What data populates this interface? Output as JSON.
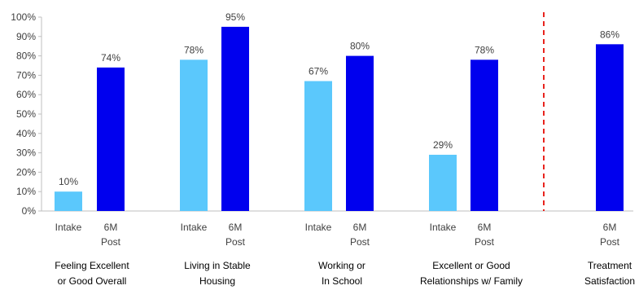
{
  "chart_data": {
    "type": "bar",
    "ylim": [
      0,
      100
    ],
    "y_ticks": [
      "0%",
      "10%",
      "20%",
      "30%",
      "40%",
      "50%",
      "60%",
      "70%",
      "80%",
      "90%",
      "100%"
    ],
    "grid": false,
    "legend": "none",
    "colors": {
      "intake": "#5bc8fc",
      "post": "#0000ee",
      "divider": "#e8241e",
      "axis": "#bfbfbf"
    },
    "groups": [
      {
        "label_lines": [
          "Feeling Excellent",
          "or Good Overall"
        ],
        "bars": [
          {
            "series": "intake",
            "label_lines": [
              "Intake"
            ],
            "value": 10,
            "value_label": "10%"
          },
          {
            "series": "post",
            "label_lines": [
              "6M",
              "Post"
            ],
            "value": 74,
            "value_label": "74%"
          }
        ]
      },
      {
        "label_lines": [
          "Living in Stable",
          "Housing"
        ],
        "bars": [
          {
            "series": "intake",
            "label_lines": [
              "Intake"
            ],
            "value": 78,
            "value_label": "78%"
          },
          {
            "series": "post",
            "label_lines": [
              "6M",
              "Post"
            ],
            "value": 95,
            "value_label": "95%"
          }
        ]
      },
      {
        "label_lines": [
          "Working or",
          "In School"
        ],
        "bars": [
          {
            "series": "intake",
            "label_lines": [
              "Intake"
            ],
            "value": 67,
            "value_label": "67%"
          },
          {
            "series": "post",
            "label_lines": [
              "6M",
              "Post"
            ],
            "value": 80,
            "value_label": "80%"
          }
        ]
      },
      {
        "label_lines": [
          "Excellent or Good",
          "Relationships w/ Family"
        ],
        "bars": [
          {
            "series": "intake",
            "label_lines": [
              "Intake"
            ],
            "value": 29,
            "value_label": "29%"
          },
          {
            "series": "post",
            "label_lines": [
              "6M",
              "Post"
            ],
            "value": 78,
            "value_label": "78%"
          }
        ]
      },
      {
        "label_lines": [
          "Treatment",
          "Satisfaction"
        ],
        "bars": [
          {
            "series": "post",
            "label_lines": [
              "6M",
              "Post"
            ],
            "value": 86,
            "value_label": "86%"
          }
        ]
      }
    ]
  }
}
